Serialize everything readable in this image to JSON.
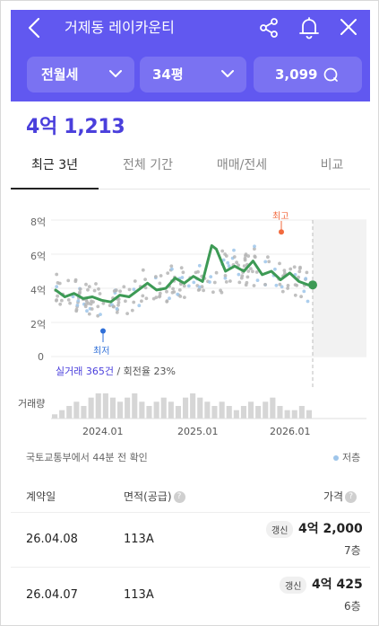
{
  "header": {
    "title": "거제동 레이카운티",
    "back_icon": "back-arrow-icon",
    "share_icon": "share-icon",
    "bell_icon": "bell-icon",
    "close_icon": "close-icon",
    "background": "#6158f0"
  },
  "filters": {
    "deal_type": "전월세",
    "size": "34평",
    "count": "3,099"
  },
  "price": "4억 1,213",
  "tabs": [
    {
      "label": "최근 3년",
      "active": true
    },
    {
      "label": "전체 기간",
      "active": false
    },
    {
      "label": "매매/전세",
      "active": false
    },
    {
      "label": "비교",
      "active": false
    }
  ],
  "chart_data": {
    "type": "scatter",
    "yticks": [
      "8억",
      "6억",
      "4억",
      "2억",
      "0"
    ],
    "ylim": [
      0,
      8
    ],
    "xticks": [
      "2024.01",
      "2025.01",
      "2026.01"
    ],
    "x_range": [
      "2023.06",
      "2026.04"
    ],
    "high_label": "최고",
    "low_label": "최저",
    "high_value": 7.3,
    "low_value": 1.5,
    "volume_label": "거래량",
    "trend": [
      {
        "x": 2023.5,
        "y": 3.9
      },
      {
        "x": 2023.6,
        "y": 3.5
      },
      {
        "x": 2023.7,
        "y": 3.7
      },
      {
        "x": 2023.8,
        "y": 3.4
      },
      {
        "x": 2023.9,
        "y": 3.5
      },
      {
        "x": 2024.0,
        "y": 3.3
      },
      {
        "x": 2024.1,
        "y": 3.2
      },
      {
        "x": 2024.2,
        "y": 3.6
      },
      {
        "x": 2024.3,
        "y": 3.5
      },
      {
        "x": 2024.4,
        "y": 3.9
      },
      {
        "x": 2024.5,
        "y": 4.3
      },
      {
        "x": 2024.6,
        "y": 3.9
      },
      {
        "x": 2024.7,
        "y": 4.0
      },
      {
        "x": 2024.8,
        "y": 4.6
      },
      {
        "x": 2024.9,
        "y": 4.3
      },
      {
        "x": 2025.0,
        "y": 4.7
      },
      {
        "x": 2025.1,
        "y": 4.4
      },
      {
        "x": 2025.2,
        "y": 6.5
      },
      {
        "x": 2025.25,
        "y": 6.3
      },
      {
        "x": 2025.35,
        "y": 5.0
      },
      {
        "x": 2025.45,
        "y": 5.3
      },
      {
        "x": 2025.55,
        "y": 5.0
      },
      {
        "x": 2025.65,
        "y": 5.6
      },
      {
        "x": 2025.75,
        "y": 4.8
      },
      {
        "x": 2025.85,
        "y": 5.0
      },
      {
        "x": 2025.95,
        "y": 4.5
      },
      {
        "x": 2026.05,
        "y": 4.9
      },
      {
        "x": 2026.15,
        "y": 4.4
      },
      {
        "x": 2026.25,
        "y": 4.2
      }
    ],
    "volume": [
      1,
      2,
      3,
      4,
      3,
      5,
      6,
      6,
      5,
      4,
      5,
      6,
      4,
      3,
      4,
      5,
      4,
      3,
      5,
      6,
      5,
      4,
      3,
      4,
      3,
      2,
      3,
      4,
      3,
      4,
      5,
      3,
      2,
      2,
      3,
      2
    ],
    "summary_highlight": "실거래 365건",
    "summary_rest": " / 회전율 23%",
    "colors": {
      "trend": "#3d9a55",
      "point": "#b5b5b5",
      "low_point": "#9ec5ea",
      "high": "#f26a3e",
      "low": "#2f6fd8"
    }
  },
  "source": "국토교통부에서 44분 전 확인",
  "legend_low": "저층",
  "table": {
    "headers": {
      "date": "계약일",
      "area": "면적(공급)",
      "price": "가격"
    },
    "rows": [
      {
        "date": "26.04.08",
        "area": "113A",
        "badge": "갱신",
        "amount": "4억 2,000",
        "floor": "7층"
      },
      {
        "date": "26.04.07",
        "area": "113A",
        "badge": "갱신",
        "amount": "4억 425",
        "floor": "6층"
      }
    ]
  }
}
